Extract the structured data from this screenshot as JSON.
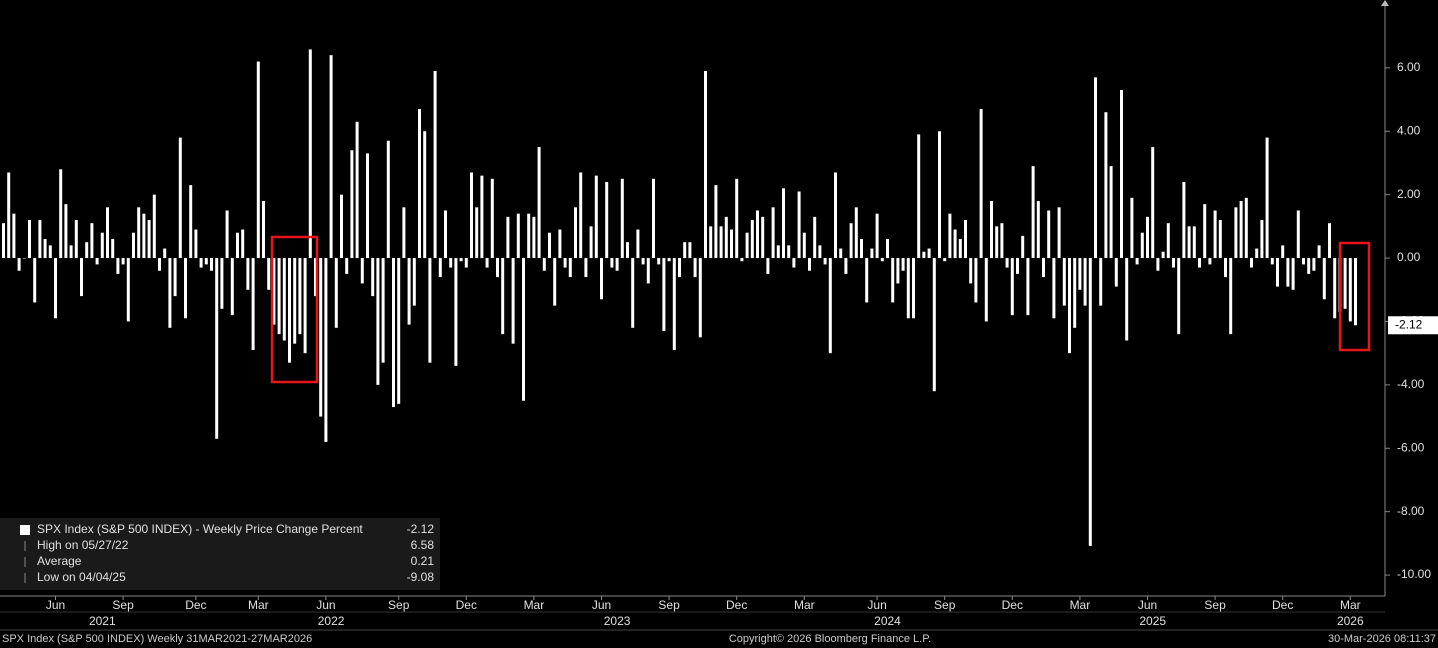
{
  "chart_data": {
    "type": "bar",
    "color": "#ffffff",
    "values": [
      1.1,
      2.7,
      1.4,
      -0.4,
      0.0,
      1.2,
      -1.4,
      1.2,
      0.6,
      0.4,
      -1.9,
      2.8,
      1.7,
      0.4,
      1.2,
      -1.2,
      0.5,
      1.1,
      -0.2,
      0.8,
      1.6,
      0.6,
      -0.5,
      -0.2,
      -2.0,
      0.8,
      1.6,
      1.4,
      1.2,
      2.0,
      -0.4,
      0.3,
      -2.2,
      -1.2,
      3.8,
      -1.9,
      2.3,
      0.9,
      -0.3,
      -0.2,
      -0.4,
      -5.7,
      -1.6,
      1.5,
      -1.8,
      0.8,
      0.9,
      -1.0,
      -2.9,
      6.2,
      1.8,
      -1.0,
      -2.1,
      -2.4,
      -2.6,
      -3.3,
      -2.7,
      -2.4,
      -3.0,
      6.58,
      -1.2,
      -5.0,
      -5.8,
      6.4,
      -2.2,
      2.0,
      -0.5,
      3.4,
      4.3,
      -0.8,
      3.3,
      -1.2,
      -4.0,
      -3.3,
      3.7,
      -4.7,
      -4.6,
      1.6,
      -2.1,
      -1.5,
      4.7,
      4.0,
      -3.3,
      5.9,
      -0.6,
      1.5,
      -0.3,
      -3.4,
      -0.1,
      -0.3,
      2.7,
      1.6,
      2.6,
      -0.3,
      2.5,
      -0.6,
      -2.4,
      1.3,
      -2.7,
      1.4,
      -4.5,
      1.4,
      1.3,
      3.5,
      -0.4,
      0.8,
      -1.5,
      0.9,
      -0.3,
      -0.6,
      1.6,
      2.7,
      -0.6,
      1.0,
      2.6,
      -1.3,
      2.4,
      -0.3,
      -0.4,
      2.5,
      0.5,
      -2.2,
      0.9,
      -0.2,
      -0.8,
      2.5,
      -0.2,
      -2.3,
      -0.1,
      -2.9,
      -0.6,
      0.5,
      0.5,
      -0.6,
      -2.5,
      5.9,
      1.0,
      2.3,
      1.0,
      1.3,
      0.9,
      2.5,
      -0.1,
      0.8,
      1.2,
      1.5,
      1.3,
      -0.5,
      1.6,
      0.4,
      2.2,
      0.4,
      -0.3,
      2.1,
      0.8,
      -0.4,
      1.3,
      0.4,
      -0.2,
      -3.0,
      2.7,
      0.3,
      -0.5,
      1.1,
      1.6,
      0.6,
      -1.4,
      0.3,
      1.4,
      -0.1,
      0.6,
      -1.4,
      -0.8,
      -0.4,
      -1.9,
      -1.9,
      3.9,
      0.2,
      0.3,
      -4.2,
      4.0,
      -0.1,
      1.4,
      0.9,
      0.6,
      1.2,
      -0.8,
      -1.4,
      4.7,
      -2.0,
      1.8,
      1.0,
      1.1,
      -0.3,
      -1.8,
      -0.5,
      0.7,
      -1.8,
      2.9,
      1.8,
      -0.6,
      1.5,
      -1.9,
      1.6,
      -1.5,
      -3.0,
      -2.2,
      -1.0,
      -1.5,
      -9.08,
      5.7,
      -1.5,
      4.6,
      2.9,
      -0.9,
      5.3,
      -2.6,
      1.9,
      -0.2,
      0.8,
      1.3,
      3.5,
      -0.4,
      0.2,
      1.1,
      -0.3,
      -2.4,
      2.4,
      1.0,
      1.0,
      -0.3,
      1.7,
      -0.2,
      1.5,
      1.2,
      -0.6,
      -2.4,
      1.6,
      1.8,
      1.9,
      -0.3,
      0.3,
      1.2,
      3.8,
      -0.2,
      -0.9,
      0.4,
      -0.9,
      -1.0,
      1.5,
      -0.2,
      -0.5,
      -0.4,
      0.4,
      -1.3,
      1.1,
      -1.9,
      -1.7,
      -1.6,
      -2.0,
      -2.12
    ],
    "ylim": [
      -10.66,
      8.14
    ],
    "yticks": [
      {
        "value": -10,
        "label": "-10.00"
      },
      {
        "value": -8,
        "label": "-8.00"
      },
      {
        "value": -6,
        "label": "-6.00"
      },
      {
        "value": -4,
        "label": "-4.00"
      },
      {
        "value": -2,
        "label": "-2.00"
      },
      {
        "value": 0,
        "label": "0.00"
      },
      {
        "value": 2,
        "label": "2.00"
      },
      {
        "value": 4,
        "label": "4.00"
      },
      {
        "value": 6,
        "label": "6.00"
      }
    ],
    "xticks": [
      {
        "value": 10,
        "label": "Jun"
      },
      {
        "value": 23,
        "label": "Sep"
      },
      {
        "value": 37,
        "label": "Dec"
      },
      {
        "value": 49,
        "label": "Mar"
      },
      {
        "value": 62,
        "label": "Jun"
      },
      {
        "value": 76,
        "label": "Sep"
      },
      {
        "value": 89,
        "label": "Dec"
      },
      {
        "value": 102,
        "label": "Mar"
      },
      {
        "value": 115,
        "label": "Jun"
      },
      {
        "value": 128,
        "label": "Sep"
      },
      {
        "value": 141,
        "label": "Dec"
      },
      {
        "value": 154,
        "label": "Mar"
      },
      {
        "value": 168,
        "label": "Jun"
      },
      {
        "value": 181,
        "label": "Sep"
      },
      {
        "value": 194,
        "label": "Dec"
      },
      {
        "value": 207,
        "label": "Mar"
      },
      {
        "value": 220,
        "label": "Jun"
      },
      {
        "value": 233,
        "label": "Sep"
      },
      {
        "value": 246,
        "label": "Dec"
      },
      {
        "value": 259,
        "label": "Mar"
      }
    ],
    "year_labels": [
      {
        "value": 19,
        "label": "2021"
      },
      {
        "value": 63,
        "label": "2022"
      },
      {
        "value": 118,
        "label": "2023"
      },
      {
        "value": 170,
        "label": "2024"
      },
      {
        "value": 221,
        "label": "2025"
      },
      {
        "value": 259,
        "label": "2026"
      }
    ],
    "current_value_label": "-2.12",
    "legend": [
      {
        "label": "SPX Index (S&P 500 INDEX) - Weekly Price Change Percent",
        "value": -2.12
      },
      {
        "label": "High on 05/27/22",
        "value": 6.58
      },
      {
        "label": "Average",
        "value": 0.21
      },
      {
        "label": "Low on 04/04/25",
        "value": -9.08
      }
    ],
    "footer": {
      "left": "SPX Index (S&P 500 INDEX) Weekly 31MAR2021-27MAR2026",
      "center": "Copyright© 2026 Bloomberg Finance L.P.",
      "right": "30-Mar-2026 08:11:37"
    }
  }
}
